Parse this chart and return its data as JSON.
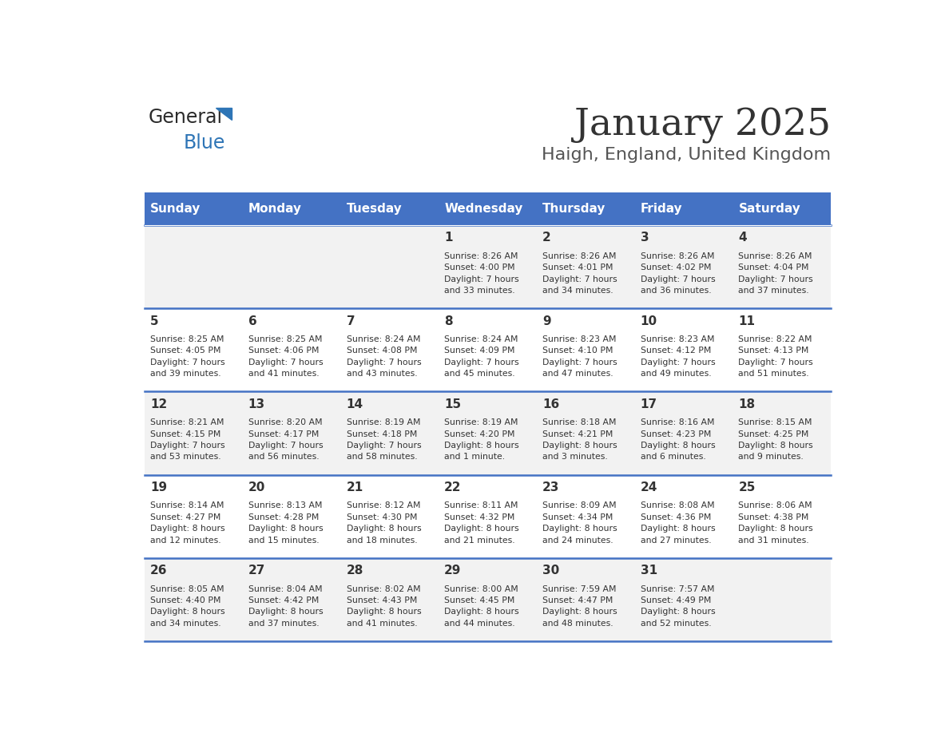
{
  "title": "January 2025",
  "subtitle": "Haigh, England, United Kingdom",
  "days_of_week": [
    "Sunday",
    "Monday",
    "Tuesday",
    "Wednesday",
    "Thursday",
    "Friday",
    "Saturday"
  ],
  "header_bg": "#4472C4",
  "header_text": "#FFFFFF",
  "row_bg_odd": "#F2F2F2",
  "row_bg_even": "#FFFFFF",
  "separator_color": "#4472C4",
  "title_color": "#333333",
  "subtitle_color": "#555555",
  "day_number_color": "#333333",
  "cell_text_color": "#333333",
  "weeks": [
    {
      "days": [
        {
          "date": null,
          "info": null
        },
        {
          "date": null,
          "info": null
        },
        {
          "date": null,
          "info": null
        },
        {
          "date": "1",
          "info": "Sunrise: 8:26 AM\nSunset: 4:00 PM\nDaylight: 7 hours\nand 33 minutes."
        },
        {
          "date": "2",
          "info": "Sunrise: 8:26 AM\nSunset: 4:01 PM\nDaylight: 7 hours\nand 34 minutes."
        },
        {
          "date": "3",
          "info": "Sunrise: 8:26 AM\nSunset: 4:02 PM\nDaylight: 7 hours\nand 36 minutes."
        },
        {
          "date": "4",
          "info": "Sunrise: 8:26 AM\nSunset: 4:04 PM\nDaylight: 7 hours\nand 37 minutes."
        }
      ]
    },
    {
      "days": [
        {
          "date": "5",
          "info": "Sunrise: 8:25 AM\nSunset: 4:05 PM\nDaylight: 7 hours\nand 39 minutes."
        },
        {
          "date": "6",
          "info": "Sunrise: 8:25 AM\nSunset: 4:06 PM\nDaylight: 7 hours\nand 41 minutes."
        },
        {
          "date": "7",
          "info": "Sunrise: 8:24 AM\nSunset: 4:08 PM\nDaylight: 7 hours\nand 43 minutes."
        },
        {
          "date": "8",
          "info": "Sunrise: 8:24 AM\nSunset: 4:09 PM\nDaylight: 7 hours\nand 45 minutes."
        },
        {
          "date": "9",
          "info": "Sunrise: 8:23 AM\nSunset: 4:10 PM\nDaylight: 7 hours\nand 47 minutes."
        },
        {
          "date": "10",
          "info": "Sunrise: 8:23 AM\nSunset: 4:12 PM\nDaylight: 7 hours\nand 49 minutes."
        },
        {
          "date": "11",
          "info": "Sunrise: 8:22 AM\nSunset: 4:13 PM\nDaylight: 7 hours\nand 51 minutes."
        }
      ]
    },
    {
      "days": [
        {
          "date": "12",
          "info": "Sunrise: 8:21 AM\nSunset: 4:15 PM\nDaylight: 7 hours\nand 53 minutes."
        },
        {
          "date": "13",
          "info": "Sunrise: 8:20 AM\nSunset: 4:17 PM\nDaylight: 7 hours\nand 56 minutes."
        },
        {
          "date": "14",
          "info": "Sunrise: 8:19 AM\nSunset: 4:18 PM\nDaylight: 7 hours\nand 58 minutes."
        },
        {
          "date": "15",
          "info": "Sunrise: 8:19 AM\nSunset: 4:20 PM\nDaylight: 8 hours\nand 1 minute."
        },
        {
          "date": "16",
          "info": "Sunrise: 8:18 AM\nSunset: 4:21 PM\nDaylight: 8 hours\nand 3 minutes."
        },
        {
          "date": "17",
          "info": "Sunrise: 8:16 AM\nSunset: 4:23 PM\nDaylight: 8 hours\nand 6 minutes."
        },
        {
          "date": "18",
          "info": "Sunrise: 8:15 AM\nSunset: 4:25 PM\nDaylight: 8 hours\nand 9 minutes."
        }
      ]
    },
    {
      "days": [
        {
          "date": "19",
          "info": "Sunrise: 8:14 AM\nSunset: 4:27 PM\nDaylight: 8 hours\nand 12 minutes."
        },
        {
          "date": "20",
          "info": "Sunrise: 8:13 AM\nSunset: 4:28 PM\nDaylight: 8 hours\nand 15 minutes."
        },
        {
          "date": "21",
          "info": "Sunrise: 8:12 AM\nSunset: 4:30 PM\nDaylight: 8 hours\nand 18 minutes."
        },
        {
          "date": "22",
          "info": "Sunrise: 8:11 AM\nSunset: 4:32 PM\nDaylight: 8 hours\nand 21 minutes."
        },
        {
          "date": "23",
          "info": "Sunrise: 8:09 AM\nSunset: 4:34 PM\nDaylight: 8 hours\nand 24 minutes."
        },
        {
          "date": "24",
          "info": "Sunrise: 8:08 AM\nSunset: 4:36 PM\nDaylight: 8 hours\nand 27 minutes."
        },
        {
          "date": "25",
          "info": "Sunrise: 8:06 AM\nSunset: 4:38 PM\nDaylight: 8 hours\nand 31 minutes."
        }
      ]
    },
    {
      "days": [
        {
          "date": "26",
          "info": "Sunrise: 8:05 AM\nSunset: 4:40 PM\nDaylight: 8 hours\nand 34 minutes."
        },
        {
          "date": "27",
          "info": "Sunrise: 8:04 AM\nSunset: 4:42 PM\nDaylight: 8 hours\nand 37 minutes."
        },
        {
          "date": "28",
          "info": "Sunrise: 8:02 AM\nSunset: 4:43 PM\nDaylight: 8 hours\nand 41 minutes."
        },
        {
          "date": "29",
          "info": "Sunrise: 8:00 AM\nSunset: 4:45 PM\nDaylight: 8 hours\nand 44 minutes."
        },
        {
          "date": "30",
          "info": "Sunrise: 7:59 AM\nSunset: 4:47 PM\nDaylight: 8 hours\nand 48 minutes."
        },
        {
          "date": "31",
          "info": "Sunrise: 7:57 AM\nSunset: 4:49 PM\nDaylight: 8 hours\nand 52 minutes."
        },
        {
          "date": null,
          "info": null
        }
      ]
    }
  ]
}
